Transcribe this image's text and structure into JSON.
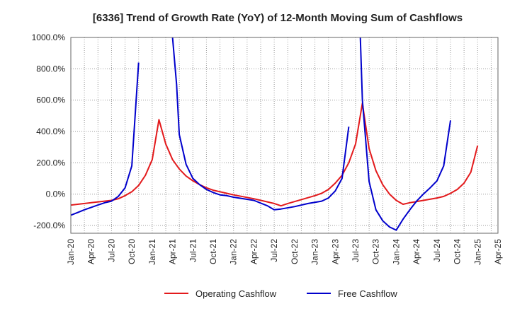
{
  "chart_data": {
    "type": "line",
    "title": "[6336]  Trend of Growth Rate (YoY) of 12-Month Moving Sum of Cashflows",
    "xlabel": "",
    "ylabel": "",
    "ylim": [
      -250,
      1000
    ],
    "yticks": [
      -200,
      0,
      200,
      400,
      600,
      800,
      1000
    ],
    "ytick_labels": [
      "-200.0%",
      "0.0%",
      "200.0%",
      "400.0%",
      "600.0%",
      "800.0%",
      "1000.0%"
    ],
    "x_start": "2020-01",
    "x_end": "2025-04",
    "xtick_labels": [
      "Jan-20",
      "Apr-20",
      "Jul-20",
      "Oct-20",
      "Jan-21",
      "Apr-21",
      "Jul-21",
      "Oct-21",
      "Jan-22",
      "Apr-22",
      "Jul-22",
      "Oct-22",
      "Jan-23",
      "Apr-23",
      "Jul-23",
      "Oct-23",
      "Jan-24",
      "Apr-24",
      "Jul-24",
      "Oct-24",
      "Jan-25",
      "Apr-25"
    ],
    "grid": true,
    "legend_position": "bottom-center",
    "series": [
      {
        "name": "Operating Cashflow",
        "color": "#e31a1c",
        "points": [
          [
            "2020-01",
            -70
          ],
          [
            "2020-04",
            -55
          ],
          [
            "2020-07",
            -40
          ],
          [
            "2020-08",
            -30
          ],
          [
            "2020-09",
            -10
          ],
          [
            "2020-10",
            15
          ],
          [
            "2020-11",
            55
          ],
          [
            "2020-12",
            120
          ],
          [
            "2021-01",
            220
          ],
          [
            "2021-02",
            475
          ],
          [
            "2021-03",
            320
          ],
          [
            "2021-04",
            220
          ],
          [
            "2021-05",
            160
          ],
          [
            "2021-06",
            115
          ],
          [
            "2021-07",
            85
          ],
          [
            "2021-08",
            60
          ],
          [
            "2021-09",
            40
          ],
          [
            "2021-10",
            25
          ],
          [
            "2021-11",
            15
          ],
          [
            "2021-12",
            5
          ],
          [
            "2022-01",
            -5
          ],
          [
            "2022-04",
            -30
          ],
          [
            "2022-07",
            -60
          ],
          [
            "2022-08",
            -75
          ],
          [
            "2022-09",
            -60
          ],
          [
            "2022-11",
            -35
          ],
          [
            "2023-01",
            -10
          ],
          [
            "2023-02",
            5
          ],
          [
            "2023-03",
            30
          ],
          [
            "2023-04",
            70
          ],
          [
            "2023-05",
            120
          ],
          [
            "2023-06",
            200
          ],
          [
            "2023-07",
            320
          ],
          [
            "2023-08",
            580
          ],
          [
            "2023-09",
            290
          ],
          [
            "2023-10",
            150
          ],
          [
            "2023-11",
            60
          ],
          [
            "2023-12",
            0
          ],
          [
            "2024-01",
            -40
          ],
          [
            "2024-02",
            -65
          ],
          [
            "2024-03",
            -55
          ],
          [
            "2024-05",
            -40
          ],
          [
            "2024-07",
            -25
          ],
          [
            "2024-08",
            -15
          ],
          [
            "2024-09",
            5
          ],
          [
            "2024-10",
            30
          ],
          [
            "2024-11",
            70
          ],
          [
            "2024-12",
            140
          ],
          [
            "2025-01",
            310
          ]
        ]
      },
      {
        "name": "Free Cashflow",
        "color": "#0000cc",
        "points": [
          [
            "2020-01",
            -135
          ],
          [
            "2020-02",
            -118
          ],
          [
            "2020-03",
            -100
          ],
          [
            "2020-04",
            -85
          ],
          [
            "2020-05",
            -70
          ],
          [
            "2020-06",
            -55
          ],
          [
            "2020-07",
            -45
          ],
          [
            "2020-08",
            -15
          ],
          [
            "2020-09",
            40
          ],
          [
            "2020-10",
            180
          ],
          [
            "2020-11",
            840
          ],
          [
            "2020-11.4",
            null
          ],
          [
            "2021-04",
            1000
          ],
          [
            "2021-04.6",
            700
          ],
          [
            "2021-05",
            380
          ],
          [
            "2021-06",
            190
          ],
          [
            "2021-07",
            100
          ],
          [
            "2021-08",
            60
          ],
          [
            "2021-09",
            30
          ],
          [
            "2021-10",
            10
          ],
          [
            "2021-11",
            -5
          ],
          [
            "2021-12",
            -10
          ],
          [
            "2022-01",
            -20
          ],
          [
            "2022-04",
            -40
          ],
          [
            "2022-06",
            -75
          ],
          [
            "2022-07",
            -100
          ],
          [
            "2022-08",
            -95
          ],
          [
            "2022-10",
            -80
          ],
          [
            "2022-12",
            -60
          ],
          [
            "2023-02",
            -45
          ],
          [
            "2023-03",
            -25
          ],
          [
            "2023-04",
            20
          ],
          [
            "2023-05",
            100
          ],
          [
            "2023-06",
            430
          ],
          [
            "2023-06.4",
            null
          ],
          [
            "2023-07.7",
            1000
          ],
          [
            "2023-08",
            600
          ],
          [
            "2023-09",
            80
          ],
          [
            "2023-10",
            -100
          ],
          [
            "2023-11",
            -170
          ],
          [
            "2023-12",
            -210
          ],
          [
            "2024-01",
            -230
          ],
          [
            "2024-02",
            -160
          ],
          [
            "2024-03",
            -100
          ],
          [
            "2024-04",
            -45
          ],
          [
            "2024-05",
            0
          ],
          [
            "2024-06",
            40
          ],
          [
            "2024-07",
            85
          ],
          [
            "2024-08",
            180
          ],
          [
            "2024-09",
            470
          ]
        ]
      }
    ]
  }
}
